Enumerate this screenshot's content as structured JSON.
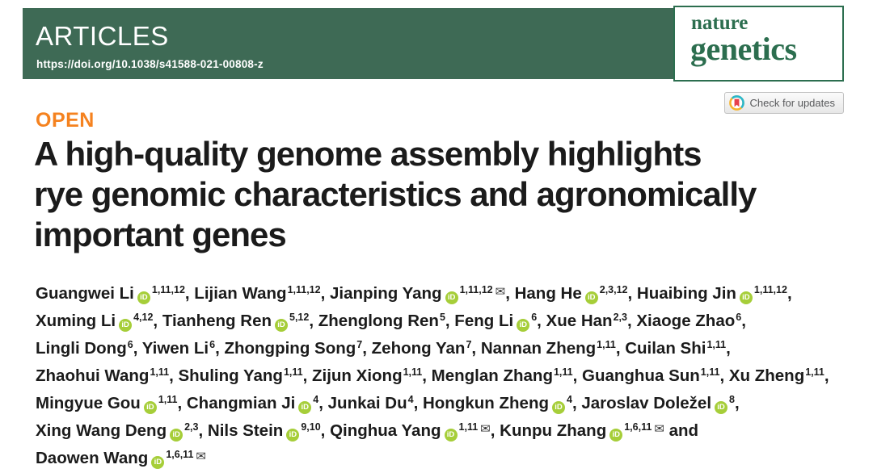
{
  "header": {
    "kicker": "ARTICLES",
    "doi": "https://doi.org/10.1038/s41588-021-00808-z",
    "journal": {
      "line1": "nature",
      "line2": "genetics"
    },
    "band_color": "#3e6a55",
    "logo_green": "#2c6e4f"
  },
  "check_for_updates": {
    "label": "Check for updates"
  },
  "open_label": "OPEN",
  "title": "A high-quality genome assembly highlights\nrye genomic characteristics and agronomically\nimportant genes",
  "colors": {
    "open_orange": "#f5821f",
    "orcid_green": "#a6ce39",
    "crossmark_yellow": "#f7b32b",
    "crossmark_teal": "#28b8ce",
    "crossmark_red": "#e8414c"
  },
  "authors": {
    "orcid_label": "iD",
    "envelope_glyph": "✉",
    "lines": [
      [
        {
          "name": "Guangwei Li",
          "orcid": true,
          "sup": "1,11,12",
          "env": false,
          "sep": ", "
        },
        {
          "name": "Lijian Wang",
          "orcid": false,
          "sup": "1,11,12",
          "env": false,
          "sep": ", "
        },
        {
          "name": "Jianping Yang",
          "orcid": true,
          "sup": "1,11,12",
          "env": true,
          "sep": ", "
        },
        {
          "name": "Hang He",
          "orcid": true,
          "sup": "2,3,12",
          "env": false,
          "sep": ", "
        },
        {
          "name": "Huaibing Jin",
          "orcid": true,
          "sup": "1,11,12",
          "env": false,
          "sep": ","
        }
      ],
      [
        {
          "name": "Xuming Li",
          "orcid": true,
          "sup": "4,12",
          "env": false,
          "sep": ", "
        },
        {
          "name": "Tianheng Ren",
          "orcid": true,
          "sup": "5,12",
          "env": false,
          "sep": ", "
        },
        {
          "name": "Zhenglong Ren",
          "orcid": false,
          "sup": "5",
          "env": false,
          "sep": ", "
        },
        {
          "name": "Feng Li",
          "orcid": true,
          "sup": "6",
          "env": false,
          "sep": ", "
        },
        {
          "name": "Xue Han",
          "orcid": false,
          "sup": "2,3",
          "env": false,
          "sep": ", "
        },
        {
          "name": "Xiaoge Zhao",
          "orcid": false,
          "sup": "6",
          "env": false,
          "sep": ","
        }
      ],
      [
        {
          "name": "Lingli Dong",
          "orcid": false,
          "sup": "6",
          "env": false,
          "sep": ", "
        },
        {
          "name": "Yiwen Li",
          "orcid": false,
          "sup": "6",
          "env": false,
          "sep": ", "
        },
        {
          "name": "Zhongping Song",
          "orcid": false,
          "sup": "7",
          "env": false,
          "sep": ", "
        },
        {
          "name": "Zehong Yan",
          "orcid": false,
          "sup": "7",
          "env": false,
          "sep": ", "
        },
        {
          "name": "Nannan Zheng",
          "orcid": false,
          "sup": "1,11",
          "env": false,
          "sep": ", "
        },
        {
          "name": "Cuilan Shi",
          "orcid": false,
          "sup": "1,11",
          "env": false,
          "sep": ","
        }
      ],
      [
        {
          "name": "Zhaohui Wang",
          "orcid": false,
          "sup": "1,11",
          "env": false,
          "sep": ", "
        },
        {
          "name": "Shuling Yang",
          "orcid": false,
          "sup": "1,11",
          "env": false,
          "sep": ", "
        },
        {
          "name": "Zijun Xiong",
          "orcid": false,
          "sup": "1,11",
          "env": false,
          "sep": ", "
        },
        {
          "name": "Menglan Zhang",
          "orcid": false,
          "sup": "1,11",
          "env": false,
          "sep": ", "
        },
        {
          "name": "Guanghua Sun",
          "orcid": false,
          "sup": "1,11",
          "env": false,
          "sep": ", "
        },
        {
          "name": "Xu Zheng",
          "orcid": false,
          "sup": "1,11",
          "env": false,
          "sep": ","
        }
      ],
      [
        {
          "name": "Mingyue Gou",
          "orcid": true,
          "sup": "1,11",
          "env": false,
          "sep": ", "
        },
        {
          "name": "Changmian Ji",
          "orcid": true,
          "sup": "4",
          "env": false,
          "sep": ", "
        },
        {
          "name": "Junkai Du",
          "orcid": false,
          "sup": "4",
          "env": false,
          "sep": ", "
        },
        {
          "name": "Hongkun Zheng",
          "orcid": true,
          "sup": "4",
          "env": false,
          "sep": ", "
        },
        {
          "name": "Jaroslav Doležel",
          "orcid": true,
          "sup": "8",
          "env": false,
          "sep": ","
        }
      ],
      [
        {
          "name": "Xing Wang Deng",
          "orcid": true,
          "sup": "2,3",
          "env": false,
          "sep": ", "
        },
        {
          "name": "Nils Stein",
          "orcid": true,
          "sup": "9,10",
          "env": false,
          "sep": ", "
        },
        {
          "name": "Qinghua Yang",
          "orcid": true,
          "sup": "1,11",
          "env": true,
          "sep": ", "
        },
        {
          "name": "Kunpu Zhang",
          "orcid": true,
          "sup": "1,6,11",
          "env": true,
          "sep": " and"
        }
      ],
      [
        {
          "name": "Daowen Wang",
          "orcid": true,
          "sup": "1,6,11",
          "env": true,
          "sep": ""
        }
      ]
    ]
  }
}
